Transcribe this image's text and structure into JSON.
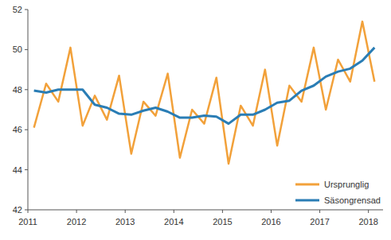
{
  "chart_data": {
    "type": "line",
    "x": [
      2011.125,
      2011.375,
      2011.625,
      2011.875,
      2012.125,
      2012.375,
      2012.625,
      2012.875,
      2013.125,
      2013.375,
      2013.625,
      2013.875,
      2014.125,
      2014.375,
      2014.625,
      2014.875,
      2015.125,
      2015.375,
      2015.625,
      2015.875,
      2016.125,
      2016.375,
      2016.625,
      2016.875,
      2017.125,
      2017.375,
      2017.625,
      2017.875,
      2018.125
    ],
    "series": [
      {
        "name": "Ursprunglig",
        "color": "#f2a13a",
        "values": [
          46.1,
          48.3,
          47.4,
          50.1,
          46.2,
          47.7,
          46.5,
          48.7,
          44.8,
          47.4,
          46.7,
          48.8,
          44.6,
          47.0,
          46.3,
          48.6,
          44.3,
          47.2,
          46.2,
          49.0,
          45.2,
          48.2,
          47.4,
          50.1,
          47.0,
          49.5,
          48.4,
          51.4,
          48.4
        ]
      },
      {
        "name": "Säsongrensad",
        "color": "#2a7db5",
        "values": [
          47.95,
          47.85,
          48.0,
          48.0,
          48.0,
          47.25,
          47.1,
          46.8,
          46.75,
          46.95,
          47.1,
          46.9,
          46.6,
          46.6,
          46.7,
          46.65,
          46.3,
          46.75,
          46.75,
          47.0,
          47.35,
          47.45,
          47.95,
          48.2,
          48.65,
          48.9,
          49.05,
          49.45,
          50.1
        ]
      }
    ],
    "xlim": [
      2011,
      2018.3
    ],
    "xticks": [
      2011,
      2012,
      2013,
      2014,
      2015,
      2016,
      2017,
      2018
    ],
    "ylim": [
      42,
      52
    ],
    "yticks": [
      42,
      44,
      46,
      48,
      50,
      52
    ],
    "grid": false,
    "legend": "lower right"
  }
}
